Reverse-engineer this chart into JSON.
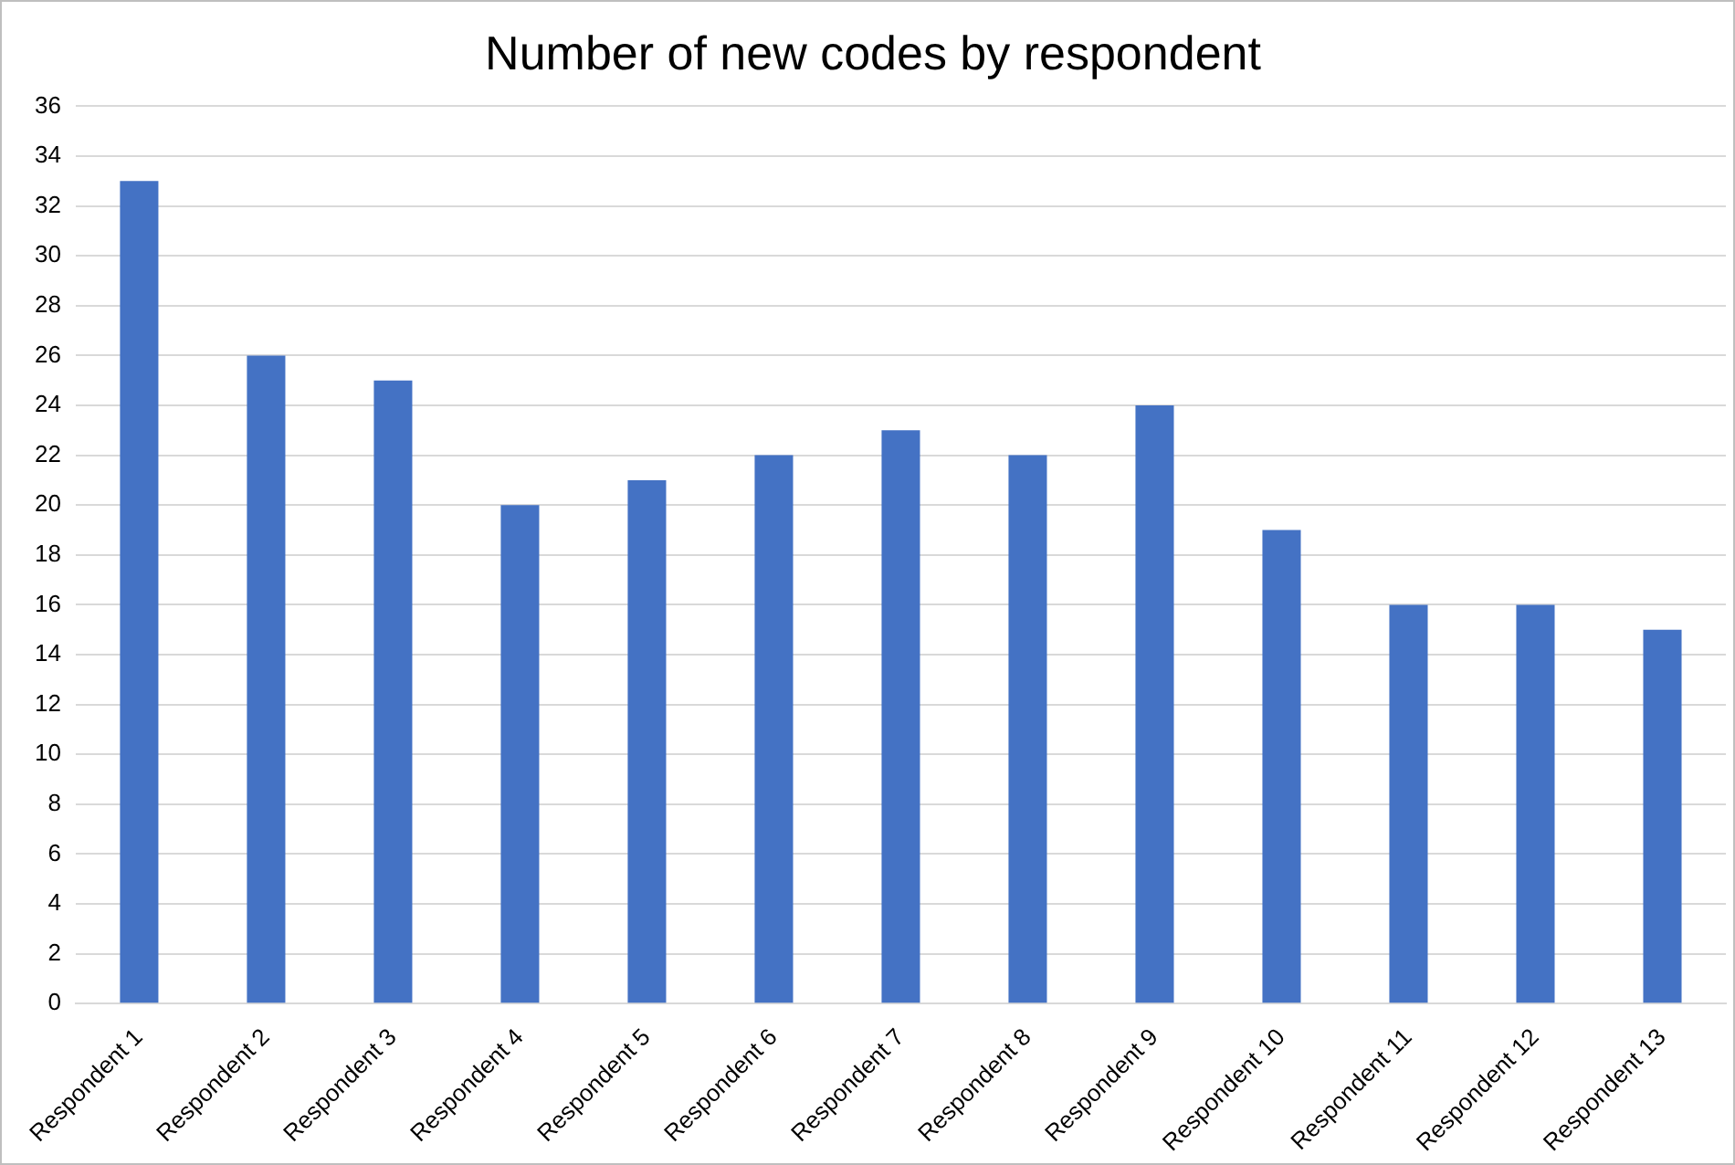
{
  "chart_data": {
    "type": "bar",
    "title": "Number of new codes by respondent",
    "categories": [
      "Respondent 1",
      "Respondent 2",
      "Respondent 3",
      "Respondent 4",
      "Respondent 5",
      "Respondent 6",
      "Respondent 7",
      "Respondent 8",
      "Respondent 9",
      "Respondent 10",
      "Respondent 11",
      "Respondent 12",
      "Respondent 13"
    ],
    "values": [
      33,
      26,
      25,
      20,
      21,
      22,
      23,
      22,
      24,
      19,
      16,
      16,
      15
    ],
    "color": "#4472c4",
    "ylim": [
      0,
      36
    ],
    "yticks": [
      0,
      2,
      4,
      6,
      8,
      10,
      12,
      14,
      16,
      18,
      20,
      22,
      24,
      26,
      28,
      30,
      32,
      34,
      36
    ],
    "grid": "y"
  }
}
